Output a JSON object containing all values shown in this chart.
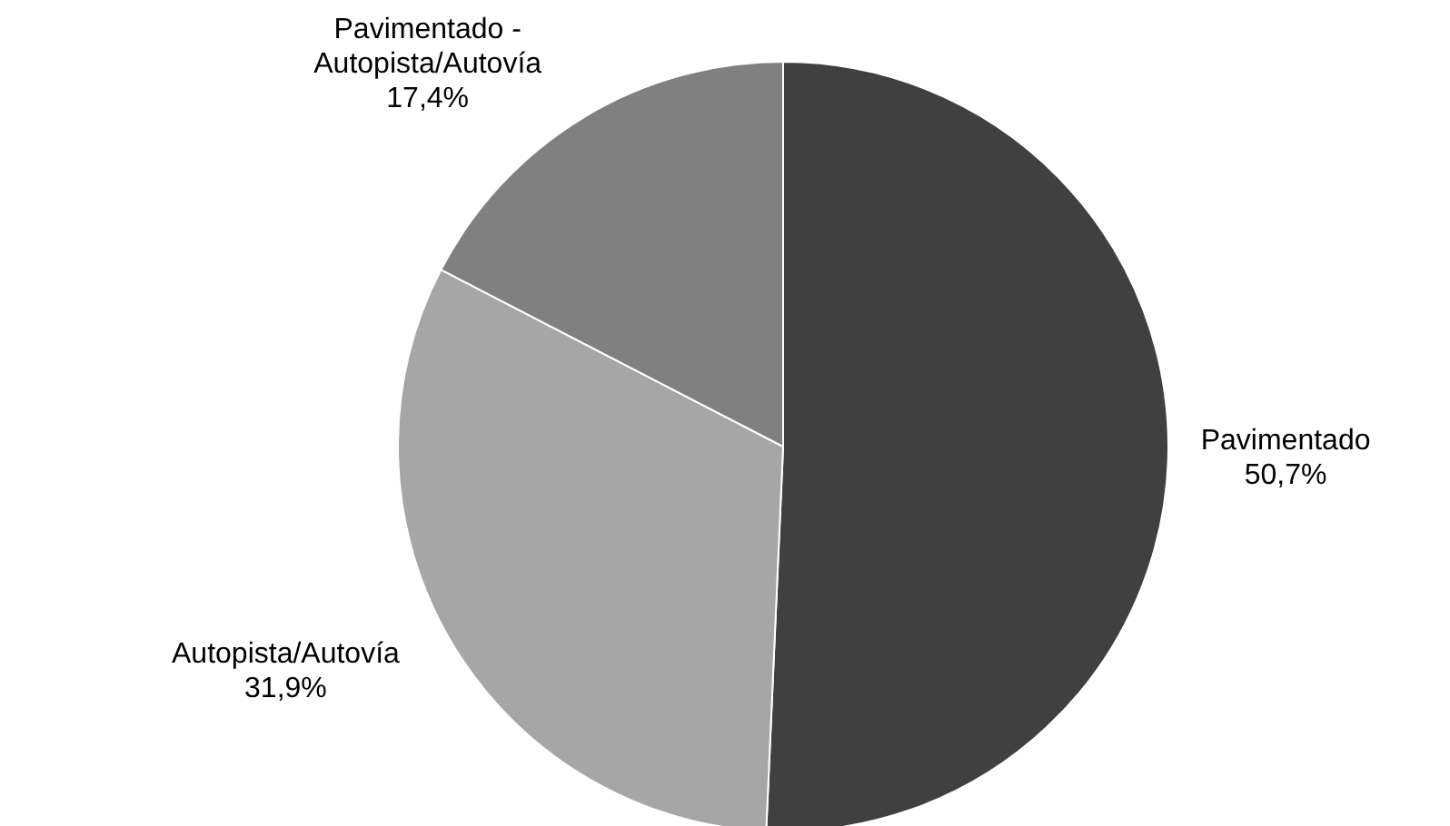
{
  "chart_data": {
    "type": "pie",
    "categories": [
      "Pavimentado",
      "Autopista/Autovía",
      "Pavimentado - Autopista/Autovía"
    ],
    "values": [
      50.7,
      31.9,
      17.4
    ],
    "colors": [
      "#404040",
      "#a6a6a6",
      "#808080"
    ],
    "value_labels": [
      "50,7%",
      "31,9%",
      "17,4%"
    ]
  }
}
